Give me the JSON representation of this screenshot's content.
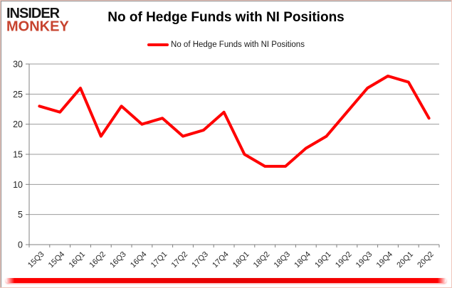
{
  "logo": {
    "line1": "INSIDER",
    "line2": "MONKEY"
  },
  "legend": {
    "swatch_color": "#ff0000"
  },
  "branding": {
    "logo_black": "#141414",
    "logo_red": "#c7432e",
    "accent_red": "#ff0000",
    "bottom_bar_color": "#ff0000"
  },
  "chart_data": {
    "type": "line",
    "title": "No of Hedge Funds with NI Positions",
    "categories": [
      "15Q3",
      "15Q4",
      "16Q1",
      "16Q2",
      "16Q3",
      "16Q4",
      "17Q1",
      "17Q2",
      "17Q3",
      "17Q4",
      "18Q1",
      "18Q2",
      "18Q3",
      "18Q4",
      "19Q1",
      "19Q2",
      "19Q3",
      "19Q4",
      "20Q1",
      "20Q2"
    ],
    "series": [
      {
        "name": "No of Hedge Funds with NI Positions",
        "color": "#ff0000",
        "values": [
          23,
          22,
          26,
          18,
          23,
          20,
          21,
          18,
          19,
          22,
          15,
          13,
          13,
          16,
          18,
          22,
          26,
          28,
          27,
          21
        ]
      }
    ],
    "xlabel": "",
    "ylabel": "",
    "ylim": [
      0,
      30
    ],
    "ytick_interval": 5,
    "yticks": [
      0,
      5,
      10,
      15,
      20,
      25,
      30
    ],
    "grid": true,
    "legend_position": "top-center",
    "gridline_color": "#9b9b9b",
    "axis_color": "#808080",
    "tick_label_color": "#2b2b2b"
  }
}
